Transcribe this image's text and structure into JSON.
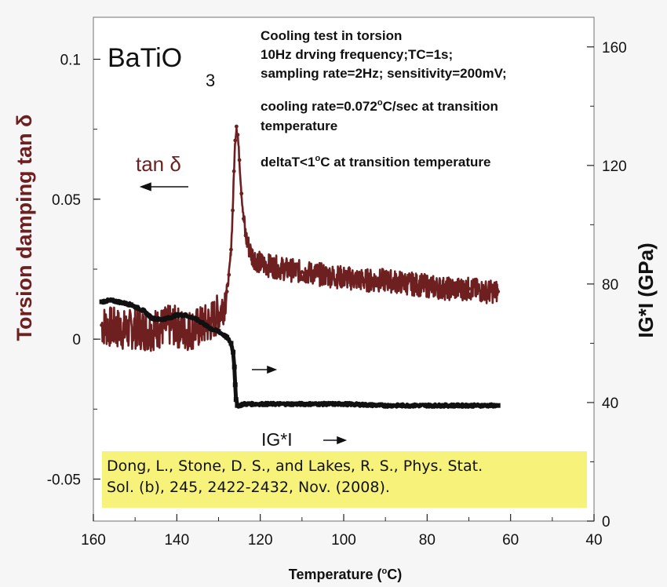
{
  "chart_data": {
    "type": "scatter",
    "xlabel": "Temperature (",
    "xlabel_sup": "o",
    "xlabel_end": "C)",
    "ylabel_left": "Torsion damping tan δ",
    "ylabel_right": "IG*I (GPa)",
    "xlim": [
      160,
      40
    ],
    "ylim_left": [
      -0.065,
      0.115
    ],
    "ylim_right": [
      0,
      170
    ],
    "x_ticks": [
      "160",
      "140",
      "120",
      "100",
      "80",
      "60",
      "40"
    ],
    "y_left_ticks": [
      "0.1",
      "0.05",
      "0",
      "-0.05"
    ],
    "y_right_ticks": [
      "160",
      "120",
      "80",
      "40",
      "0"
    ],
    "material": "BaTiO",
    "material_sub": "3",
    "series": [
      {
        "name": "tan δ",
        "axis": "left",
        "color": "#6e1f1f",
        "x": [
          158,
          155,
          152,
          150,
          147,
          144,
          141,
          138,
          135,
          132,
          130,
          129,
          128,
          127.5,
          127,
          126.6,
          126.3,
          126,
          125.7,
          125.4,
          125,
          124.5,
          124,
          123.5,
          123,
          122,
          120,
          117,
          114,
          110,
          105,
          100,
          95,
          90,
          85,
          80,
          75,
          70,
          66,
          63
        ],
        "y": [
          0.005,
          0.004,
          0.003,
          0.004,
          0.003,
          0.004,
          0.005,
          0.003,
          0.004,
          0.006,
          0.009,
          0.012,
          0.017,
          0.023,
          0.032,
          0.046,
          0.06,
          0.071,
          0.076,
          0.073,
          0.064,
          0.052,
          0.043,
          0.037,
          0.034,
          0.03,
          0.027,
          0.026,
          0.025,
          0.024,
          0.023,
          0.022,
          0.021,
          0.021,
          0.02,
          0.019,
          0.018,
          0.018,
          0.017,
          0.017
        ]
      },
      {
        "name": "IG*I",
        "axis": "right",
        "color": "#111111",
        "x": [
          158,
          156,
          154,
          151,
          148,
          146,
          144,
          142,
          140,
          138,
          136,
          134,
          132,
          130,
          128,
          127,
          126.5,
          126.2,
          126,
          125.8,
          125.5,
          125,
          124,
          122,
          118,
          110,
          100,
          90,
          80,
          70,
          63
        ],
        "y": [
          74,
          74.5,
          74,
          73,
          71,
          68.5,
          68,
          68.5,
          69.5,
          69.5,
          68.5,
          67,
          65,
          64,
          62,
          60,
          57,
          52,
          46,
          41,
          39,
          39,
          39.5,
          39.5,
          39.5,
          39.5,
          39.5,
          39,
          39,
          39,
          39
        ]
      }
    ],
    "annotations": [
      "Cooling test in torsion",
      "10Hz drving frequency;TC=1s;",
      "sampling rate=2Hz; sensitivity=200mV;",
      "cooling rate=0.072",
      "o",
      "C/sec at transition",
      "temperature",
      "deltaT<1",
      "o",
      "C at transition temperature"
    ],
    "series_labels": {
      "tan": "tan δ",
      "ig": "IG*I"
    }
  },
  "citation": {
    "line1": "Dong, L., Stone, D. S., and Lakes, R. S., Phys. Stat.",
    "line2": "Sol. (b), 245, 2422-2432, Nov.  (2008)."
  }
}
